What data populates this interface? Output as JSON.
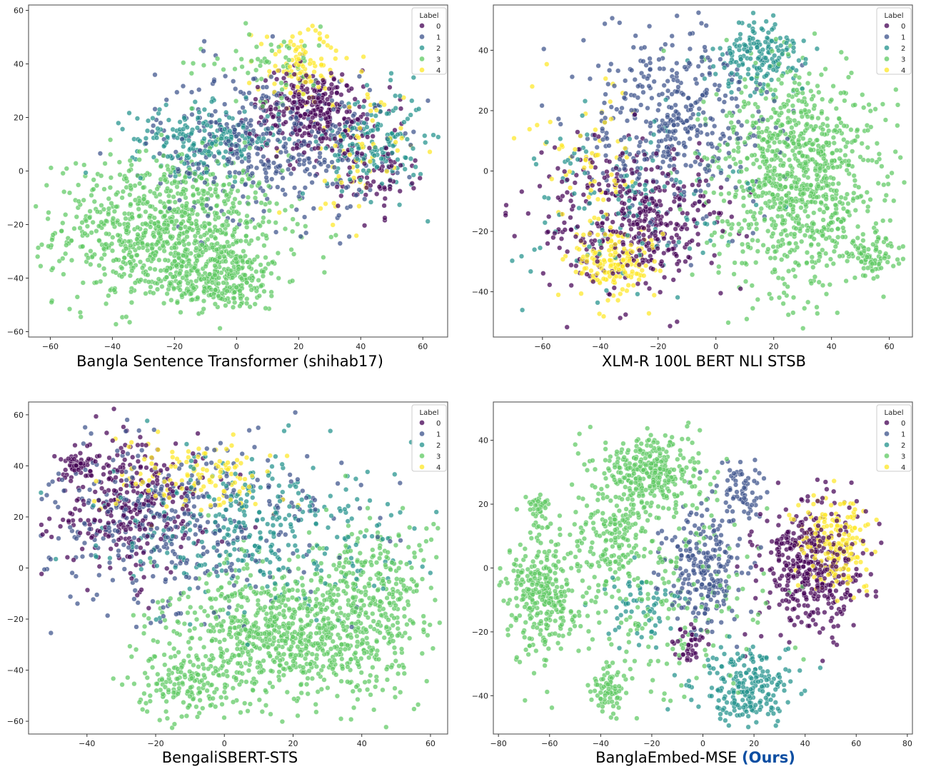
{
  "legend": {
    "title": "Label",
    "labels": [
      "0",
      "1",
      "2",
      "3",
      "4"
    ],
    "colors": [
      "#440154",
      "#3b528b",
      "#21918c",
      "#5ec962",
      "#fde725"
    ]
  },
  "chart_data": [
    {
      "type": "scatter",
      "title": "Bangla Sentence Transformer (shihab17)",
      "xlim": [
        -67,
        68
      ],
      "ylim": [
        -62,
        62
      ],
      "xticks": [
        -60,
        -40,
        -20,
        0,
        20,
        40,
        60
      ],
      "yticks": [
        -60,
        -40,
        -20,
        0,
        20,
        40,
        60
      ],
      "xtick_labels": [
        "−60",
        "−40",
        "−20",
        "0",
        "20",
        "40",
        "60"
      ],
      "ytick_labels": [
        "−60",
        "−40",
        "−20",
        "0",
        "20",
        "40",
        "60"
      ],
      "clusters": [
        {
          "label": 3,
          "cx": -22,
          "cy": -22,
          "sx": 18,
          "sy": 14,
          "n": 900
        },
        {
          "label": 3,
          "cx": -5,
          "cy": -40,
          "sx": 10,
          "sy": 6,
          "n": 260
        },
        {
          "label": 3,
          "cx": 10,
          "cy": 40,
          "sx": 12,
          "sy": 7,
          "n": 60
        },
        {
          "label": 2,
          "cx": -10,
          "cy": 12,
          "sx": 12,
          "sy": 6,
          "n": 200
        },
        {
          "label": 2,
          "cx": 45,
          "cy": 10,
          "sx": 8,
          "sy": 10,
          "n": 160
        },
        {
          "label": 1,
          "cx": 10,
          "cy": 10,
          "sx": 18,
          "sy": 14,
          "n": 400
        },
        {
          "label": 0,
          "cx": 25,
          "cy": 22,
          "sx": 10,
          "sy": 8,
          "n": 300
        },
        {
          "label": 0,
          "cx": 45,
          "cy": 0,
          "sx": 6,
          "sy": 8,
          "n": 70
        },
        {
          "label": 4,
          "cx": 22,
          "cy": 38,
          "sx": 8,
          "sy": 8,
          "n": 110
        },
        {
          "label": 4,
          "cx": 38,
          "cy": 5,
          "sx": 8,
          "sy": 12,
          "n": 60
        }
      ]
    },
    {
      "type": "scatter",
      "title": "XLM-R 100L BERT NLI STSB",
      "xlim": [
        -77,
        68
      ],
      "ylim": [
        -55,
        55
      ],
      "xticks": [
        -60,
        -40,
        -20,
        0,
        20,
        40,
        60
      ],
      "yticks": [
        -40,
        -20,
        0,
        20,
        40
      ],
      "xtick_labels": [
        "−60",
        "−40",
        "−20",
        "0",
        "20",
        "40",
        "60"
      ],
      "ytick_labels": [
        "−40",
        "−20",
        "0",
        "20",
        "40"
      ],
      "clusters": [
        {
          "label": 3,
          "cx": 28,
          "cy": -2,
          "sx": 14,
          "sy": 18,
          "n": 950
        },
        {
          "label": 3,
          "cx": 55,
          "cy": -28,
          "sx": 4,
          "sy": 4,
          "n": 80
        },
        {
          "label": 2,
          "cx": 15,
          "cy": 38,
          "sx": 8,
          "sy": 6,
          "n": 170
        },
        {
          "label": 2,
          "cx": -30,
          "cy": -10,
          "sx": 20,
          "sy": 14,
          "n": 130
        },
        {
          "label": 1,
          "cx": -15,
          "cy": 18,
          "sx": 16,
          "sy": 16,
          "n": 420
        },
        {
          "label": 0,
          "cx": -30,
          "cy": -15,
          "sx": 16,
          "sy": 12,
          "n": 420
        },
        {
          "label": 4,
          "cx": -35,
          "cy": -30,
          "sx": 7,
          "sy": 6,
          "n": 180
        },
        {
          "label": 4,
          "cx": -45,
          "cy": 5,
          "sx": 10,
          "sy": 10,
          "n": 60
        }
      ]
    },
    {
      "type": "scatter",
      "title": "BengaliSBERT-STS",
      "xlim": [
        -57,
        65
      ],
      "ylim": [
        -65,
        65
      ],
      "xticks": [
        -40,
        -20,
        0,
        20,
        40,
        60
      ],
      "yticks": [
        -60,
        -40,
        -20,
        0,
        20,
        40,
        60
      ],
      "xtick_labels": [
        "−40",
        "−20",
        "0",
        "20",
        "40",
        "60"
      ],
      "ytick_labels": [
        "−60",
        "−40",
        "−20",
        "0",
        "20",
        "40",
        "60"
      ],
      "clusters": [
        {
          "label": 3,
          "cx": 20,
          "cy": -25,
          "sx": 18,
          "sy": 13,
          "n": 900
        },
        {
          "label": 3,
          "cx": -10,
          "cy": -45,
          "sx": 8,
          "sy": 7,
          "n": 150
        },
        {
          "label": 3,
          "cx": 45,
          "cy": -5,
          "sx": 8,
          "sy": 12,
          "n": 200
        },
        {
          "label": 2,
          "cx": 10,
          "cy": 15,
          "sx": 22,
          "sy": 15,
          "n": 340
        },
        {
          "label": 1,
          "cx": -15,
          "cy": 18,
          "sx": 22,
          "sy": 18,
          "n": 420
        },
        {
          "label": 0,
          "cx": -28,
          "cy": 25,
          "sx": 12,
          "sy": 14,
          "n": 320
        },
        {
          "label": 0,
          "cx": -43,
          "cy": 40,
          "sx": 2,
          "sy": 2,
          "n": 40
        },
        {
          "label": 4,
          "cx": -8,
          "cy": 35,
          "sx": 12,
          "sy": 8,
          "n": 130
        }
      ]
    },
    {
      "type": "scatter",
      "title": "BanglaEmbed-MSE",
      "title_suffix": "(Ours)",
      "xlim": [
        -82,
        82
      ],
      "ylim": [
        -52,
        52
      ],
      "xticks": [
        -80,
        -60,
        -40,
        -20,
        0,
        20,
        40,
        60,
        80
      ],
      "yticks": [
        -40,
        -20,
        0,
        20,
        40
      ],
      "xtick_labels": [
        "−80",
        "−60",
        "−40",
        "−20",
        "0",
        "20",
        "40",
        "60",
        "80"
      ],
      "ytick_labels": [
        "−40",
        "−20",
        "0",
        "20",
        "40"
      ],
      "clusters": [
        {
          "label": 3,
          "cx": -20,
          "cy": 30,
          "sx": 10,
          "sy": 6,
          "n": 320
        },
        {
          "label": 3,
          "cx": -62,
          "cy": -8,
          "sx": 7,
          "sy": 9,
          "n": 320
        },
        {
          "label": 3,
          "cx": -35,
          "cy": 10,
          "sx": 7,
          "sy": 8,
          "n": 160
        },
        {
          "label": 3,
          "cx": -37,
          "cy": -38,
          "sx": 3,
          "sy": 4,
          "n": 80
        },
        {
          "label": 3,
          "cx": -64,
          "cy": 18,
          "sx": 3,
          "sy": 3,
          "n": 40
        },
        {
          "label": 3,
          "cx": -10,
          "cy": -10,
          "sx": 20,
          "sy": 16,
          "n": 200
        },
        {
          "label": 1,
          "cx": 0,
          "cy": 0,
          "sx": 8,
          "sy": 10,
          "n": 240
        },
        {
          "label": 1,
          "cx": 15,
          "cy": 25,
          "sx": 4,
          "sy": 4,
          "n": 60
        },
        {
          "label": 2,
          "cx": 18,
          "cy": -38,
          "sx": 10,
          "sy": 6,
          "n": 220
        },
        {
          "label": 2,
          "cx": -25,
          "cy": -12,
          "sx": 6,
          "sy": 6,
          "n": 60
        },
        {
          "label": 0,
          "cx": 42,
          "cy": 0,
          "sx": 10,
          "sy": 10,
          "n": 420
        },
        {
          "label": 0,
          "cx": -5,
          "cy": -23,
          "sx": 3,
          "sy": 3,
          "n": 40
        },
        {
          "label": 4,
          "cx": 52,
          "cy": 8,
          "sx": 7,
          "sy": 7,
          "n": 200
        }
      ]
    }
  ]
}
